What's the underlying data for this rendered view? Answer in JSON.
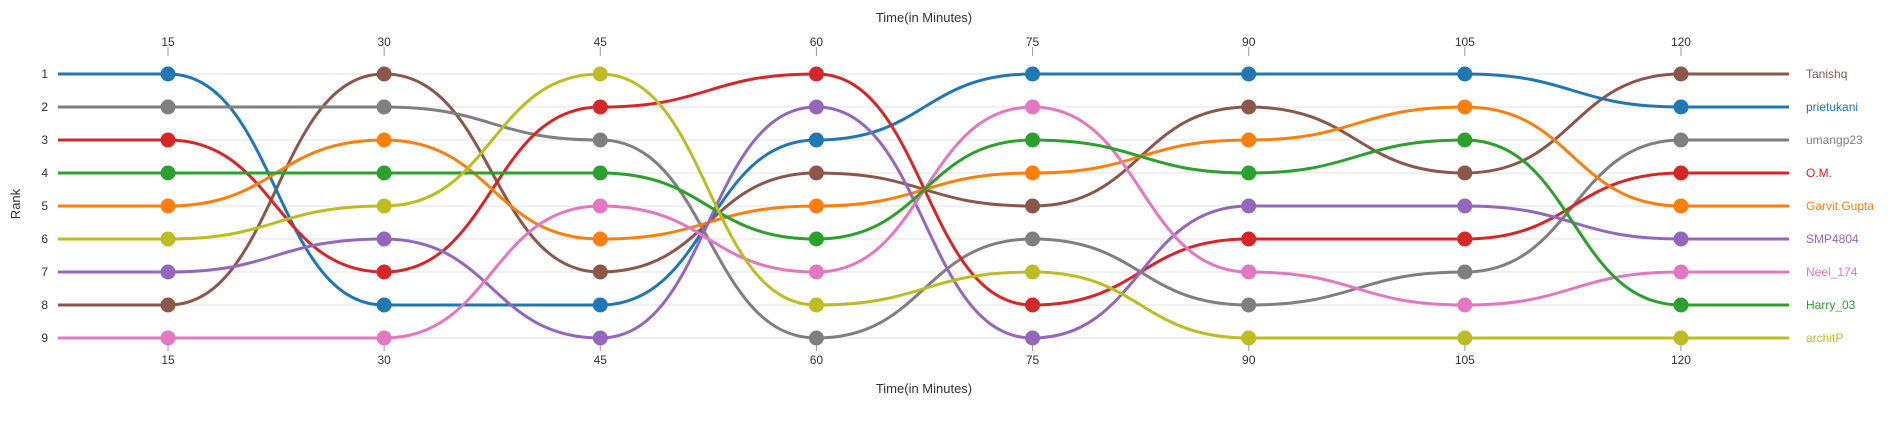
{
  "chart_data": {
    "type": "line",
    "subtype": "bump",
    "title": "",
    "xlabel": "Time(in Minutes)",
    "ylabel": "Rank",
    "x": [
      15,
      30,
      45,
      60,
      75,
      90,
      105,
      120
    ],
    "x_tick_labels": [
      "15",
      "30",
      "45",
      "60",
      "75",
      "90",
      "105",
      "120"
    ],
    "y_tick_labels": [
      "1",
      "2",
      "3",
      "4",
      "5",
      "6",
      "7",
      "8",
      "9"
    ],
    "ylim": [
      1,
      9
    ],
    "y_inverted": true,
    "grid": true,
    "legend_position": "right",
    "series": [
      {
        "name": "Tanishq",
        "color": "#8c564b",
        "values": [
          8,
          1,
          7,
          4,
          5,
          2,
          4,
          1
        ]
      },
      {
        "name": "prietukani",
        "color": "#1f77b4",
        "values": [
          1,
          8,
          8,
          3,
          1,
          1,
          1,
          2
        ]
      },
      {
        "name": "umangp23",
        "color": "#7f7f7f",
        "values": [
          2,
          2,
          3,
          9,
          6,
          8,
          7,
          3
        ]
      },
      {
        "name": "O.M.",
        "color": "#d62728",
        "values": [
          3,
          7,
          2,
          1,
          8,
          6,
          6,
          4
        ]
      },
      {
        "name": "Garvit.Gupta",
        "color": "#ff7f0e",
        "values": [
          5,
          3,
          6,
          5,
          4,
          3,
          2,
          5
        ]
      },
      {
        "name": "SMP4804",
        "color": "#9467bd",
        "values": [
          7,
          6,
          9,
          2,
          9,
          5,
          5,
          6
        ]
      },
      {
        "name": "Neel_174",
        "color": "#e377c2",
        "values": [
          9,
          9,
          5,
          7,
          2,
          7,
          8,
          7
        ]
      },
      {
        "name": "Harry_03",
        "color": "#2ca02c",
        "values": [
          4,
          4,
          4,
          6,
          3,
          4,
          3,
          8
        ]
      },
      {
        "name": "architP",
        "color": "#bcbd22",
        "values": [
          6,
          5,
          1,
          8,
          7,
          9,
          9,
          9
        ]
      }
    ]
  }
}
